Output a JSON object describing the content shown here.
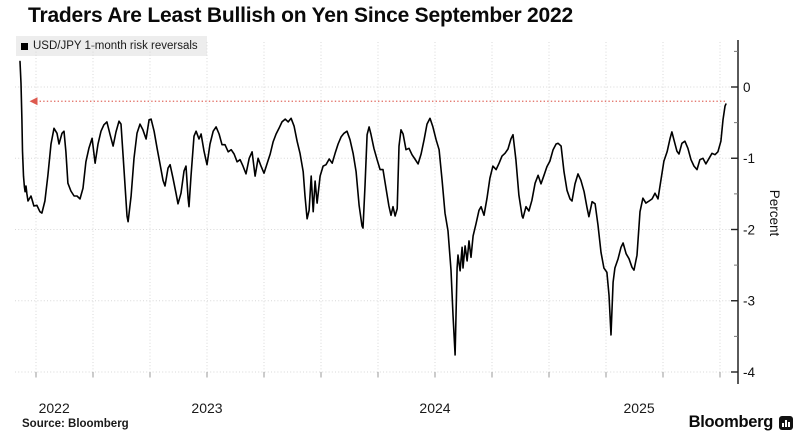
{
  "title": "Traders Are Least Bullish on Yen Since September 2022",
  "legend": {
    "swatch_color": "#000000",
    "label": "USD/JPY 1-month risk reversals"
  },
  "source_note": "Source: Bloomberg",
  "brand": {
    "wordmark": "Bloomberg",
    "logo_icon": "bloomberg-terminal-icon"
  },
  "colors": {
    "series": "#000000",
    "reference_line": "#dd5a4f",
    "gridline": "#d8d8d8",
    "axis": "#5a5a5a"
  },
  "chart_data": {
    "type": "line",
    "title": "Traders Are Least Bullish on Yen Since September 2022",
    "x_axis": {
      "range": [
        2022.66,
        2025.79
      ],
      "tick_years": [
        2022,
        2023,
        2024,
        2025
      ],
      "gridline_interval_years": 0.25,
      "grid": true
    },
    "y_axis": {
      "label": "Percent",
      "side": "right",
      "range": [
        -4.25,
        0.65
      ],
      "ticks": [
        0,
        -1,
        -2,
        -3,
        -4
      ],
      "minor_ticks": [
        0.5,
        -0.5,
        -1.5,
        -2.5,
        -3.5
      ],
      "grid": true
    },
    "reference_line": {
      "value": -0.2,
      "style": "dotted",
      "arrow": "left",
      "from_year": 2022.75,
      "to_year": 2025.772,
      "color": "#dd5a4f"
    },
    "series": [
      {
        "name": "USD/JPY 1-month risk reversals",
        "color": "#000000",
        "points": [
          [
            2022.68,
            0.36
          ],
          [
            2022.684,
            0.05
          ],
          [
            2022.688,
            -0.45
          ],
          [
            2022.691,
            -0.9
          ],
          [
            2022.695,
            -1.25
          ],
          [
            2022.699,
            -1.4
          ],
          [
            2022.702,
            -1.47
          ],
          [
            2022.706,
            -1.39
          ],
          [
            2022.71,
            -1.5
          ],
          [
            2022.715,
            -1.6
          ],
          [
            2022.728,
            -1.53
          ],
          [
            2022.741,
            -1.67
          ],
          [
            2022.754,
            -1.66
          ],
          [
            2022.767,
            -1.75
          ],
          [
            2022.776,
            -1.77
          ],
          [
            2022.789,
            -1.6
          ],
          [
            2022.802,
            -1.24
          ],
          [
            2022.816,
            -0.8
          ],
          [
            2022.829,
            -0.58
          ],
          [
            2022.842,
            -0.65
          ],
          [
            2022.851,
            -0.8
          ],
          [
            2022.864,
            -0.65
          ],
          [
            2022.873,
            -0.62
          ],
          [
            2022.881,
            -0.91
          ],
          [
            2022.89,
            -1.35
          ],
          [
            2022.903,
            -1.46
          ],
          [
            2022.917,
            -1.53
          ],
          [
            2022.93,
            -1.53
          ],
          [
            2022.943,
            -1.57
          ],
          [
            2022.956,
            -1.42
          ],
          [
            2022.969,
            -1.05
          ],
          [
            2022.982,
            -0.86
          ],
          [
            2022.996,
            -0.72
          ],
          [
            2023.009,
            -1.07
          ],
          [
            2023.022,
            -0.8
          ],
          [
            2023.035,
            -0.62
          ],
          [
            2023.048,
            -0.53
          ],
          [
            2023.061,
            -0.49
          ],
          [
            2023.075,
            -0.67
          ],
          [
            2023.088,
            -0.83
          ],
          [
            2023.101,
            -0.63
          ],
          [
            2023.114,
            -0.48
          ],
          [
            2023.123,
            -0.52
          ],
          [
            2023.136,
            -1.16
          ],
          [
            2023.149,
            -1.81
          ],
          [
            2023.154,
            -1.89
          ],
          [
            2023.167,
            -1.53
          ],
          [
            2023.18,
            -1.0
          ],
          [
            2023.193,
            -0.65
          ],
          [
            2023.206,
            -0.52
          ],
          [
            2023.219,
            -0.6
          ],
          [
            2023.233,
            -0.73
          ],
          [
            2023.246,
            -0.46
          ],
          [
            2023.255,
            -0.45
          ],
          [
            2023.268,
            -0.62
          ],
          [
            2023.281,
            -0.86
          ],
          [
            2023.294,
            -1.08
          ],
          [
            2023.307,
            -1.31
          ],
          [
            2023.316,
            -1.39
          ],
          [
            2023.329,
            -1.14
          ],
          [
            2023.338,
            -1.09
          ],
          [
            2023.351,
            -1.28
          ],
          [
            2023.364,
            -1.49
          ],
          [
            2023.373,
            -1.64
          ],
          [
            2023.386,
            -1.49
          ],
          [
            2023.399,
            -1.18
          ],
          [
            2023.408,
            -1.11
          ],
          [
            2023.417,
            -1.56
          ],
          [
            2023.421,
            -1.68
          ],
          [
            2023.43,
            -1.25
          ],
          [
            2023.443,
            -0.69
          ],
          [
            2023.452,
            -0.62
          ],
          [
            2023.465,
            -0.73
          ],
          [
            2023.474,
            -0.66
          ],
          [
            2023.487,
            -0.9
          ],
          [
            2023.5,
            -1.09
          ],
          [
            2023.513,
            -0.8
          ],
          [
            2023.527,
            -0.62
          ],
          [
            2023.54,
            -0.56
          ],
          [
            2023.553,
            -0.66
          ],
          [
            2023.566,
            -0.81
          ],
          [
            2023.579,
            -0.81
          ],
          [
            2023.593,
            -0.91
          ],
          [
            2023.606,
            -0.88
          ],
          [
            2023.619,
            -0.94
          ],
          [
            2023.632,
            -1.05
          ],
          [
            2023.645,
            -1.02
          ],
          [
            2023.658,
            -1.11
          ],
          [
            2023.671,
            -1.22
          ],
          [
            2023.685,
            -1.0
          ],
          [
            2023.698,
            -0.91
          ],
          [
            2023.711,
            -1.25
          ],
          [
            2023.724,
            -1.0
          ],
          [
            2023.737,
            -1.11
          ],
          [
            2023.75,
            -1.21
          ],
          [
            2023.764,
            -1.07
          ],
          [
            2023.777,
            -0.94
          ],
          [
            2023.79,
            -0.77
          ],
          [
            2023.803,
            -0.66
          ],
          [
            2023.816,
            -0.58
          ],
          [
            2023.829,
            -0.49
          ],
          [
            2023.843,
            -0.45
          ],
          [
            2023.856,
            -0.49
          ],
          [
            2023.869,
            -0.44
          ],
          [
            2023.882,
            -0.55
          ],
          [
            2023.895,
            -0.76
          ],
          [
            2023.908,
            -0.93
          ],
          [
            2023.922,
            -1.19
          ],
          [
            2023.93,
            -1.53
          ],
          [
            2023.939,
            -1.85
          ],
          [
            2023.948,
            -1.73
          ],
          [
            2023.957,
            -1.25
          ],
          [
            2023.966,
            -1.75
          ],
          [
            2023.974,
            -1.32
          ],
          [
            2023.983,
            -1.63
          ],
          [
            2023.996,
            -1.25
          ],
          [
            2024.009,
            -1.11
          ],
          [
            2024.022,
            -1.09
          ],
          [
            2024.036,
            -1.01
          ],
          [
            2024.049,
            -1.07
          ],
          [
            2024.062,
            -0.93
          ],
          [
            2024.075,
            -0.8
          ],
          [
            2024.088,
            -0.7
          ],
          [
            2024.101,
            -0.65
          ],
          [
            2024.114,
            -0.62
          ],
          [
            2024.127,
            -0.74
          ],
          [
            2024.141,
            -0.93
          ],
          [
            2024.154,
            -1.19
          ],
          [
            2024.167,
            -1.66
          ],
          [
            2024.18,
            -1.95
          ],
          [
            2024.184,
            -1.98
          ],
          [
            2024.193,
            -1.39
          ],
          [
            2024.202,
            -0.67
          ],
          [
            2024.211,
            -0.56
          ],
          [
            2024.219,
            -0.66
          ],
          [
            2024.232,
            -0.86
          ],
          [
            2024.246,
            -1.02
          ],
          [
            2024.259,
            -1.16
          ],
          [
            2024.272,
            -1.16
          ],
          [
            2024.285,
            -1.42
          ],
          [
            2024.298,
            -1.67
          ],
          [
            2024.307,
            -1.8
          ],
          [
            2024.316,
            -1.68
          ],
          [
            2024.325,
            -1.81
          ],
          [
            2024.334,
            -1.71
          ],
          [
            2024.342,
            -0.83
          ],
          [
            2024.351,
            -0.6
          ],
          [
            2024.36,
            -0.66
          ],
          [
            2024.373,
            -0.88
          ],
          [
            2024.386,
            -0.86
          ],
          [
            2024.399,
            -0.95
          ],
          [
            2024.412,
            -1.01
          ],
          [
            2024.426,
            -1.08
          ],
          [
            2024.439,
            -0.94
          ],
          [
            2024.452,
            -0.74
          ],
          [
            2024.465,
            -0.52
          ],
          [
            2024.478,
            -0.44
          ],
          [
            2024.491,
            -0.56
          ],
          [
            2024.505,
            -0.74
          ],
          [
            2024.518,
            -0.88
          ],
          [
            2024.531,
            -1.31
          ],
          [
            2024.544,
            -1.77
          ],
          [
            2024.557,
            -2.02
          ],
          [
            2024.57,
            -2.57
          ],
          [
            2024.579,
            -3.2
          ],
          [
            2024.588,
            -3.76
          ],
          [
            2024.597,
            -2.54
          ],
          [
            2024.601,
            -2.36
          ],
          [
            2024.61,
            -2.58
          ],
          [
            2024.619,
            -2.25
          ],
          [
            2024.623,
            -2.54
          ],
          [
            2024.632,
            -2.23
          ],
          [
            2024.641,
            -2.44
          ],
          [
            2024.649,
            -2.16
          ],
          [
            2024.658,
            -2.39
          ],
          [
            2024.667,
            -2.09
          ],
          [
            2024.68,
            -1.92
          ],
          [
            2024.693,
            -1.73
          ],
          [
            2024.702,
            -1.68
          ],
          [
            2024.715,
            -1.8
          ],
          [
            2024.728,
            -1.56
          ],
          [
            2024.741,
            -1.28
          ],
          [
            2024.754,
            -1.11
          ],
          [
            2024.768,
            -1.16
          ],
          [
            2024.781,
            -1.07
          ],
          [
            2024.794,
            -0.97
          ],
          [
            2024.807,
            -0.93
          ],
          [
            2024.82,
            -0.87
          ],
          [
            2024.833,
            -0.73
          ],
          [
            2024.842,
            -0.67
          ],
          [
            2024.855,
            -1.02
          ],
          [
            2024.868,
            -1.52
          ],
          [
            2024.882,
            -1.81
          ],
          [
            2024.886,
            -1.84
          ],
          [
            2024.899,
            -1.68
          ],
          [
            2024.912,
            -1.74
          ],
          [
            2024.925,
            -1.59
          ],
          [
            2024.939,
            -1.35
          ],
          [
            2024.952,
            -1.24
          ],
          [
            2024.965,
            -1.36
          ],
          [
            2024.978,
            -1.24
          ],
          [
            2024.991,
            -1.12
          ],
          [
            2025.004,
            -1.04
          ],
          [
            2025.018,
            -0.88
          ],
          [
            2025.031,
            -0.8
          ],
          [
            2025.04,
            -0.79
          ],
          [
            2025.053,
            -0.83
          ],
          [
            2025.066,
            -1.19
          ],
          [
            2025.079,
            -1.45
          ],
          [
            2025.092,
            -1.57
          ],
          [
            2025.101,
            -1.6
          ],
          [
            2025.114,
            -1.36
          ],
          [
            2025.127,
            -1.22
          ],
          [
            2025.14,
            -1.31
          ],
          [
            2025.154,
            -1.47
          ],
          [
            2025.167,
            -1.7
          ],
          [
            2025.175,
            -1.82
          ],
          [
            2025.189,
            -1.61
          ],
          [
            2025.202,
            -1.64
          ],
          [
            2025.215,
            -1.94
          ],
          [
            2025.228,
            -2.32
          ],
          [
            2025.241,
            -2.54
          ],
          [
            2025.254,
            -2.6
          ],
          [
            2025.263,
            -2.92
          ],
          [
            2025.272,
            -3.48
          ],
          [
            2025.281,
            -2.74
          ],
          [
            2025.289,
            -2.54
          ],
          [
            2025.303,
            -2.41
          ],
          [
            2025.316,
            -2.25
          ],
          [
            2025.325,
            -2.19
          ],
          [
            2025.338,
            -2.34
          ],
          [
            2025.351,
            -2.41
          ],
          [
            2025.364,
            -2.53
          ],
          [
            2025.373,
            -2.57
          ],
          [
            2025.386,
            -2.36
          ],
          [
            2025.399,
            -1.75
          ],
          [
            2025.412,
            -1.56
          ],
          [
            2025.425,
            -1.63
          ],
          [
            2025.439,
            -1.6
          ],
          [
            2025.452,
            -1.57
          ],
          [
            2025.465,
            -1.49
          ],
          [
            2025.478,
            -1.57
          ],
          [
            2025.491,
            -1.31
          ],
          [
            2025.504,
            -1.04
          ],
          [
            2025.518,
            -0.91
          ],
          [
            2025.531,
            -0.72
          ],
          [
            2025.539,
            -0.63
          ],
          [
            2025.548,
            -0.74
          ],
          [
            2025.561,
            -0.9
          ],
          [
            2025.57,
            -0.94
          ],
          [
            2025.583,
            -0.79
          ],
          [
            2025.596,
            -0.76
          ],
          [
            2025.609,
            -0.86
          ],
          [
            2025.623,
            -1.02
          ],
          [
            2025.636,
            -1.11
          ],
          [
            2025.649,
            -1.16
          ],
          [
            2025.662,
            -1.02
          ],
          [
            2025.675,
            -1.0
          ],
          [
            2025.688,
            -1.08
          ],
          [
            2025.702,
            -1.0
          ],
          [
            2025.715,
            -0.93
          ],
          [
            2025.728,
            -0.95
          ],
          [
            2025.741,
            -0.91
          ],
          [
            2025.754,
            -0.76
          ],
          [
            2025.763,
            -0.46
          ],
          [
            2025.772,
            -0.27
          ],
          [
            2025.776,
            -0.24
          ]
        ]
      }
    ]
  }
}
